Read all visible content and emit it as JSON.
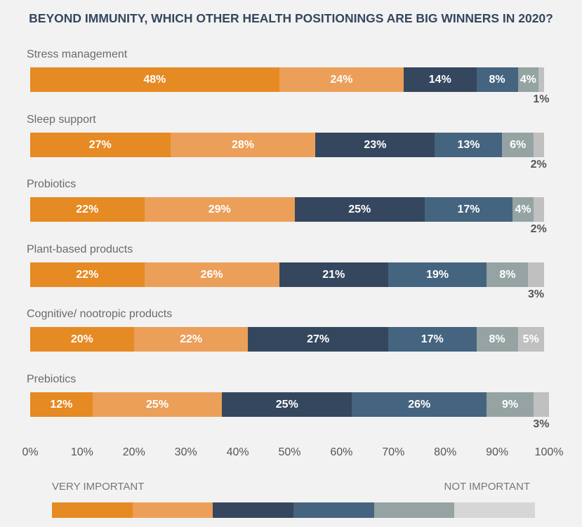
{
  "chart_data": {
    "type": "bar",
    "orientation": "horizontal",
    "stacked": true,
    "title": "BEYOND IMMUNITY, WHICH OTHER HEALTH POSITIONINGS ARE BIG WINNERS IN 2020?",
    "categories": [
      "Stress management",
      "Sleep support",
      "Probiotics",
      "Plant-based products",
      "Cognitive/ nootropic products",
      "Prebiotics"
    ],
    "series": [
      {
        "values": [
          48,
          27,
          22,
          22,
          20,
          12
        ],
        "color": "#E68A23"
      },
      {
        "values": [
          24,
          28,
          29,
          26,
          22,
          25
        ],
        "color": "#EC9F58"
      },
      {
        "values": [
          14,
          23,
          25,
          21,
          27,
          25
        ],
        "color": "#35475E"
      },
      {
        "values": [
          8,
          13,
          17,
          19,
          17,
          26
        ],
        "color": "#456480"
      },
      {
        "values": [
          4,
          6,
          4,
          8,
          8,
          9
        ],
        "color": "#95A3A3"
      },
      {
        "values": [
          1,
          2,
          2,
          3,
          5,
          3
        ],
        "color": "#C0C0C0"
      }
    ],
    "xlim": [
      0,
      100
    ],
    "xticks": [
      "0%",
      "10%",
      "20%",
      "30%",
      "40%",
      "50%",
      "60%",
      "70%",
      "80%",
      "90%",
      "100%"
    ],
    "grid": false,
    "legend": {
      "placement": "bottom",
      "left_label": "VERY IMPORTANT",
      "right_label": "NOT IMPORTANT",
      "colors": [
        "#E68A23",
        "#EC9F58",
        "#35475E",
        "#456480",
        "#95A3A3",
        "#D6D6D6"
      ]
    }
  }
}
